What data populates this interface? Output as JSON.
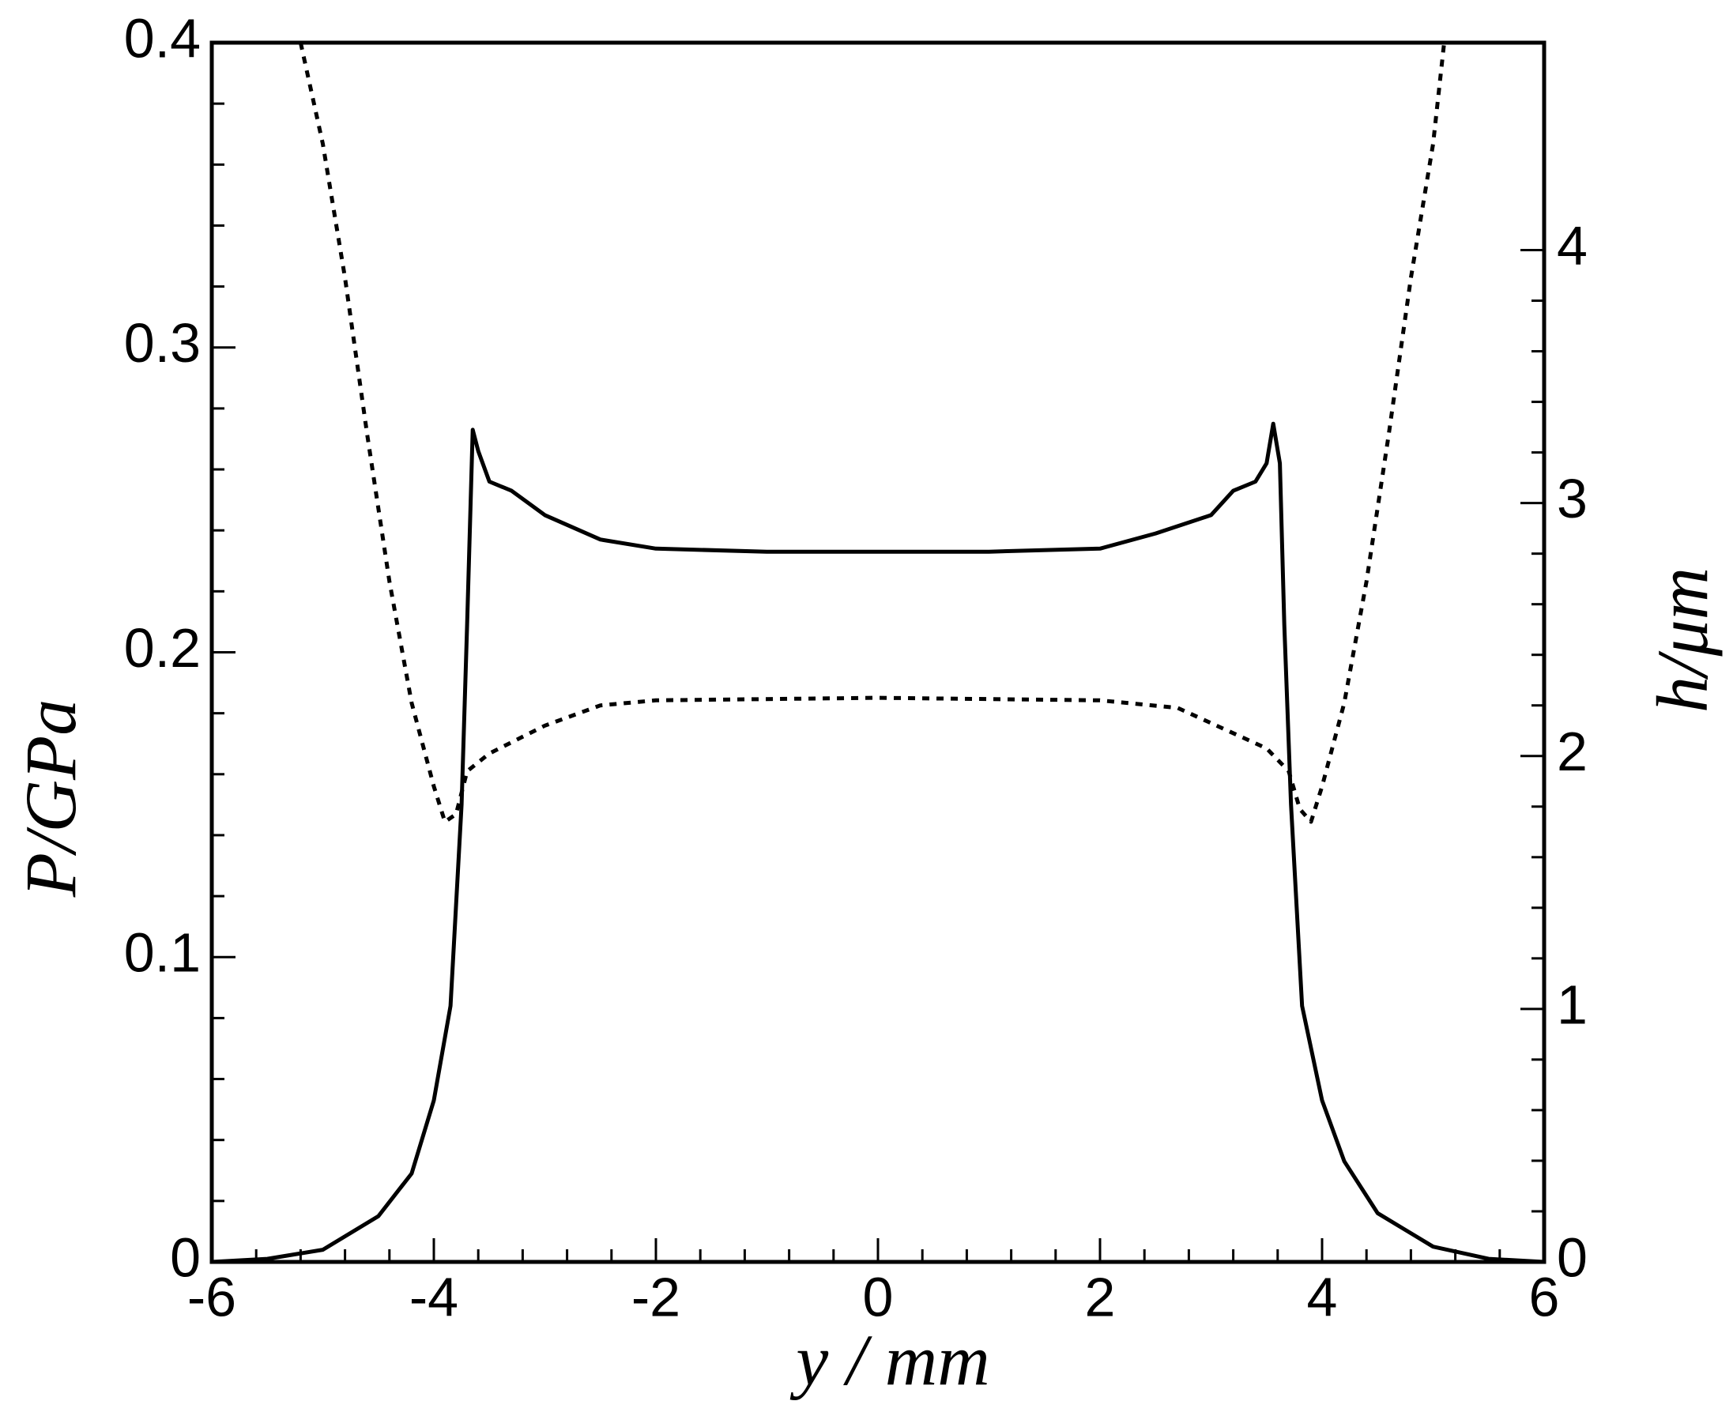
{
  "chart_data": {
    "type": "line",
    "x_label": "y / mm",
    "y_label": "P/GPa",
    "y2_label": "h/μm",
    "xlim": [
      -6,
      6
    ],
    "xticks": [
      -6,
      -4,
      -2,
      0,
      2,
      4,
      6
    ],
    "ylim": [
      0,
      0.4
    ],
    "yticks": [
      0,
      0.1,
      0.2,
      0.3,
      0.4
    ],
    "y2lim": [
      0,
      4.82
    ],
    "y2ticks": [
      0,
      1,
      2,
      3,
      4
    ],
    "grid": false,
    "series": [
      {
        "name": "P",
        "color": "#000000",
        "style": "solid",
        "x": [
          -6,
          -5.5,
          -5,
          -4.5,
          -4.2,
          -4,
          -3.85,
          -3.75,
          -3.7,
          -3.65,
          -3.6,
          -3.5,
          -3.3,
          -3,
          -2.5,
          -2,
          -1,
          0,
          1,
          2,
          2.5,
          3,
          3.2,
          3.4,
          3.5,
          3.56,
          3.62,
          3.66,
          3.72,
          3.82,
          4,
          4.2,
          4.5,
          5,
          5.5,
          6
        ],
        "values": [
          0,
          0.001,
          0.004,
          0.015,
          0.029,
          0.053,
          0.084,
          0.15,
          0.209,
          0.273,
          0.266,
          0.256,
          0.253,
          0.245,
          0.237,
          0.234,
          0.233,
          0.233,
          0.233,
          0.234,
          0.239,
          0.245,
          0.253,
          0.256,
          0.262,
          0.275,
          0.262,
          0.209,
          0.15,
          0.084,
          0.053,
          0.033,
          0.016,
          0.005,
          0.001,
          0
        ]
      },
      {
        "name": "h",
        "color": "#000000",
        "style": "dotted",
        "axis": "y2",
        "x": [
          -5.2,
          -5,
          -4.8,
          -4.6,
          -4.4,
          -4.2,
          -4,
          -3.9,
          -3.8,
          -3.7,
          -3.5,
          -3,
          -2.5,
          -2,
          0,
          2,
          2.7,
          3.5,
          3.7,
          3.8,
          3.9,
          4,
          4.2,
          4.4,
          4.6,
          4.8,
          5,
          5.1
        ],
        "values": [
          4.82,
          4.42,
          3.89,
          3.27,
          2.69,
          2.21,
          1.88,
          1.74,
          1.77,
          1.94,
          2.01,
          2.12,
          2.2,
          2.22,
          2.23,
          2.22,
          2.19,
          2.03,
          1.94,
          1.79,
          1.74,
          1.88,
          2.21,
          2.69,
          3.27,
          3.89,
          4.42,
          4.82
        ]
      }
    ]
  }
}
